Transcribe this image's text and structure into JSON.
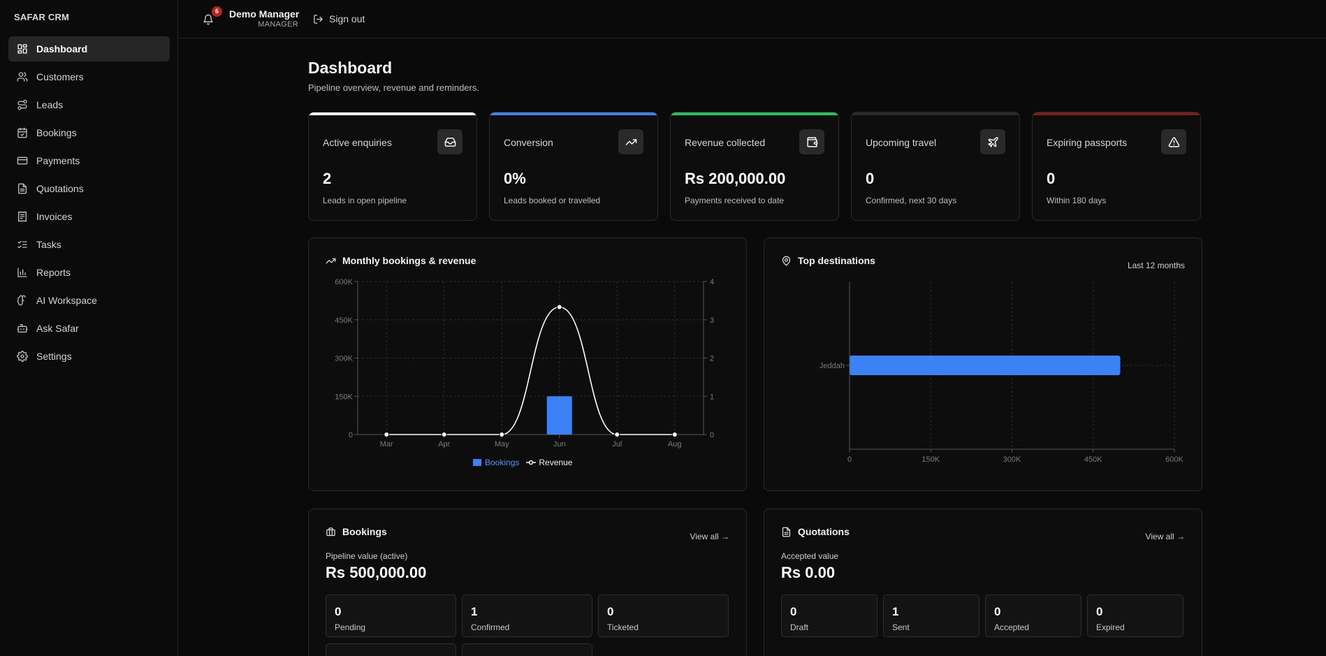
{
  "brand": "SAFAR CRM",
  "sidebar": {
    "items": [
      {
        "label": "Dashboard",
        "icon": "dashboard-icon",
        "active": true
      },
      {
        "label": "Customers",
        "icon": "users-icon"
      },
      {
        "label": "Leads",
        "icon": "route-icon"
      },
      {
        "label": "Bookings",
        "icon": "calendar-check-icon"
      },
      {
        "label": "Payments",
        "icon": "credit-card-icon"
      },
      {
        "label": "Quotations",
        "icon": "file-text-icon"
      },
      {
        "label": "Invoices",
        "icon": "receipt-icon"
      },
      {
        "label": "Tasks",
        "icon": "list-checks-icon"
      },
      {
        "label": "Reports",
        "icon": "bar-chart-icon"
      },
      {
        "label": "AI Workspace",
        "icon": "brain-icon"
      },
      {
        "label": "Ask Safar",
        "icon": "bot-icon"
      },
      {
        "label": "Settings",
        "icon": "gear-icon"
      }
    ]
  },
  "topbar": {
    "notification_count": "6",
    "user_name": "Demo Manager",
    "user_role": "MANAGER",
    "signout_label": "Sign out"
  },
  "page": {
    "title": "Dashboard",
    "subtitle": "Pipeline overview, revenue and reminders."
  },
  "stats": [
    {
      "label": "Active enquiries",
      "value": "2",
      "desc": "Leads in open pipeline",
      "accent": "#ffffff",
      "icon": "inbox-icon"
    },
    {
      "label": "Conversion",
      "value": "0%",
      "desc": "Leads booked or travelled",
      "accent": "#3b82f6",
      "icon": "trending-up-icon"
    },
    {
      "label": "Revenue collected",
      "value": "Rs 200,000.00",
      "desc": "Payments received to date",
      "accent": "#22c55e",
      "icon": "wallet-icon"
    },
    {
      "label": "Upcoming travel",
      "value": "0",
      "desc": "Confirmed, next 30 days",
      "accent": "#2a2a2a",
      "icon": "plane-icon"
    },
    {
      "label": "Expiring passports",
      "value": "0",
      "desc": "Within 180 days",
      "accent": "#7f1d1d",
      "icon": "alert-triangle-icon"
    }
  ],
  "monthly_panel": {
    "title": "Monthly bookings & revenue",
    "legend_bookings": "Bookings",
    "legend_revenue": "Revenue"
  },
  "destinations_panel": {
    "title": "Top destinations",
    "period": "Last 12 months"
  },
  "bookings_panel": {
    "title": "Bookings",
    "view_all": "View all →",
    "pipeline_label": "Pipeline value (active)",
    "pipeline_value": "Rs 500,000.00",
    "tiles": [
      {
        "num": "0",
        "cap": "Pending"
      },
      {
        "num": "1",
        "cap": "Confirmed"
      },
      {
        "num": "0",
        "cap": "Ticketed"
      }
    ]
  },
  "quotations_panel": {
    "title": "Quotations",
    "view_all": "View all →",
    "accepted_label": "Accepted value",
    "accepted_value": "Rs 0.00",
    "tiles": [
      {
        "num": "0",
        "cap": "Draft"
      },
      {
        "num": "1",
        "cap": "Sent"
      },
      {
        "num": "0",
        "cap": "Accepted"
      },
      {
        "num": "0",
        "cap": "Expired"
      }
    ]
  },
  "chart_data": [
    {
      "type": "bar+line",
      "title": "Monthly bookings & revenue",
      "categories": [
        "Mar",
        "Apr",
        "May",
        "Jun",
        "Jul",
        "Aug"
      ],
      "series": [
        {
          "name": "Bookings",
          "type": "bar",
          "axis": "right",
          "values": [
            0,
            0,
            0,
            1,
            0,
            0
          ],
          "color": "#3b82f6"
        },
        {
          "name": "Revenue",
          "type": "line",
          "axis": "left",
          "values": [
            0,
            0,
            0,
            500000,
            0,
            0
          ],
          "color": "#ffffff"
        }
      ],
      "y_left": {
        "ticks": [
          "0",
          "150K",
          "300K",
          "450K",
          "600K"
        ],
        "ylim": [
          0,
          600000
        ]
      },
      "y_right": {
        "ticks": [
          "0",
          "1",
          "2",
          "3",
          "4"
        ],
        "ylim": [
          0,
          4
        ]
      },
      "grid": true,
      "legend": "bottom"
    },
    {
      "type": "bar",
      "orientation": "horizontal",
      "title": "Top destinations",
      "categories": [
        "Jeddah"
      ],
      "values": [
        500000
      ],
      "x_ticks": [
        "0",
        "150K",
        "300K",
        "450K",
        "600K"
      ],
      "xlim": [
        0,
        600000
      ],
      "color": "#3b82f6",
      "grid": true
    }
  ]
}
